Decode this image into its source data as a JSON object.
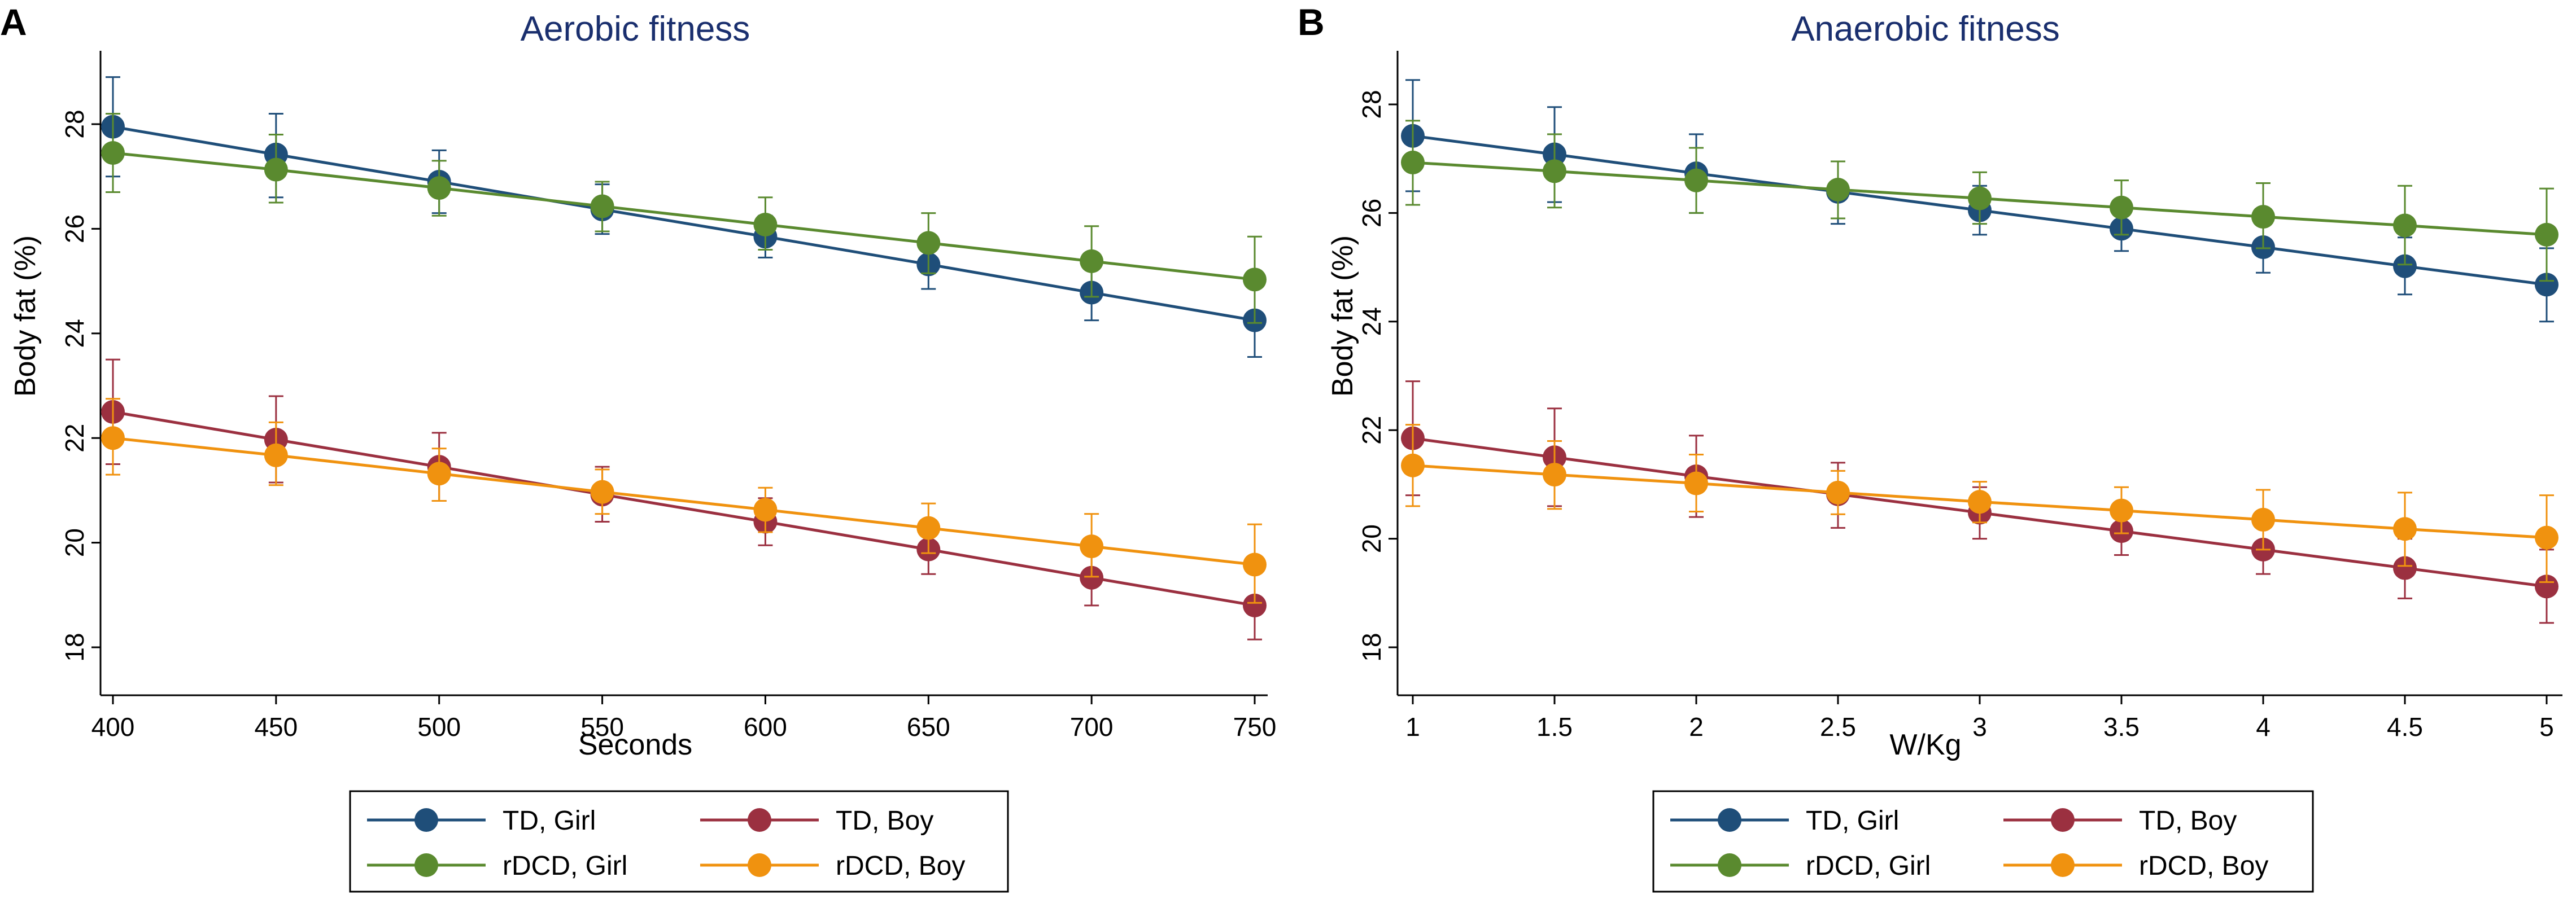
{
  "colors": {
    "td_girl": "#1f4e79",
    "td_boy": "#9b3040",
    "rdcd_girl": "#5a8a2f",
    "rdcd_boy": "#f0920f",
    "title": "#1a2f6e",
    "axis": "#000000",
    "legend_border": "#000000"
  },
  "chart_data": [
    {
      "type": "line",
      "panel_label": "A",
      "title": "Aerobic fitness",
      "xlabel": "Seconds",
      "ylabel": "Body fat (%)",
      "x": [
        400,
        450,
        500,
        550,
        600,
        650,
        700,
        750
      ],
      "x_tick_labels": [
        "400",
        "450",
        "500",
        "550",
        "600",
        "650",
        "700",
        "750"
      ],
      "xlim": [
        400,
        750
      ],
      "y_ticks": [
        18,
        20,
        22,
        24,
        26,
        28
      ],
      "y_tick_labels": [
        "18",
        "20",
        "22",
        "24",
        "26",
        "28"
      ],
      "ylim": [
        17.6,
        29.4
      ],
      "grid": false,
      "series": [
        {
          "key": "td_girl",
          "name": "TD, Girl",
          "values": [
            27.95,
            27.42,
            26.9,
            26.37,
            25.85,
            25.32,
            24.78,
            24.25
          ],
          "ci_low": [
            27.0,
            26.6,
            26.3,
            25.9,
            25.45,
            24.85,
            24.25,
            23.55
          ],
          "ci_high": [
            28.9,
            28.2,
            27.5,
            26.85,
            26.25,
            25.8,
            25.3,
            24.95
          ]
        },
        {
          "key": "td_boy",
          "name": "TD, Boy",
          "values": [
            22.5,
            21.97,
            21.45,
            20.92,
            20.4,
            19.87,
            19.33,
            18.8
          ],
          "ci_low": [
            21.5,
            21.15,
            20.8,
            20.4,
            19.95,
            19.4,
            18.8,
            18.15
          ],
          "ci_high": [
            23.5,
            22.8,
            22.1,
            21.45,
            20.85,
            20.35,
            19.85,
            19.45
          ]
        },
        {
          "key": "rdcd_girl",
          "name": "rDCD, Girl",
          "values": [
            27.45,
            27.13,
            26.78,
            26.43,
            26.08,
            25.73,
            25.38,
            25.03
          ],
          "ci_low": [
            26.7,
            26.5,
            26.25,
            25.95,
            25.6,
            25.15,
            24.7,
            24.2
          ],
          "ci_high": [
            28.2,
            27.8,
            27.3,
            26.9,
            26.6,
            26.3,
            26.05,
            25.85
          ]
        },
        {
          "key": "rdcd_boy",
          "name": "rDCD, Boy",
          "values": [
            22.0,
            21.67,
            21.32,
            20.97,
            20.63,
            20.28,
            19.93,
            19.58
          ],
          "ci_low": [
            21.3,
            21.1,
            20.8,
            20.55,
            20.2,
            19.8,
            19.35,
            18.85
          ],
          "ci_high": [
            22.75,
            22.3,
            21.8,
            21.4,
            21.05,
            20.75,
            20.55,
            20.35
          ]
        }
      ]
    },
    {
      "type": "line",
      "panel_label": "B",
      "title": "Anaerobic fitness",
      "xlabel": "W/Kg",
      "ylabel": "Body fat (%)",
      "x": [
        1,
        1.5,
        2,
        2.5,
        3,
        3.5,
        4,
        4.5,
        5
      ],
      "x_tick_labels": [
        "1",
        "1.5",
        "2",
        "2.5",
        "3",
        "3.5",
        "4",
        "4.5",
        "5"
      ],
      "xlim": [
        1,
        5
      ],
      "y_ticks": [
        18,
        20,
        22,
        24,
        26,
        28
      ],
      "y_tick_labels": [
        "18",
        "20",
        "22",
        "24",
        "26",
        "28"
      ],
      "ylim": [
        17.6,
        28.8
      ],
      "grid": false,
      "series": [
        {
          "key": "td_girl",
          "name": "TD, Girl",
          "values": [
            27.42,
            27.08,
            26.73,
            26.39,
            26.05,
            25.71,
            25.37,
            25.02,
            24.68
          ],
          "ci_low": [
            26.4,
            26.2,
            26.0,
            25.8,
            25.6,
            25.3,
            24.9,
            24.5,
            24.0
          ],
          "ci_high": [
            28.45,
            27.95,
            27.45,
            26.95,
            26.5,
            26.1,
            25.8,
            25.55,
            25.35
          ]
        },
        {
          "key": "td_boy",
          "name": "TD, Boy",
          "values": [
            21.85,
            21.5,
            21.15,
            20.82,
            20.48,
            20.14,
            19.8,
            19.46,
            19.12
          ],
          "ci_low": [
            20.8,
            20.6,
            20.4,
            20.2,
            20.0,
            19.7,
            19.35,
            18.9,
            18.45
          ],
          "ci_high": [
            22.9,
            22.4,
            21.9,
            21.4,
            20.95,
            20.6,
            20.25,
            20.0,
            19.8
          ]
        },
        {
          "key": "rdcd_girl",
          "name": "rDCD, Girl",
          "values": [
            26.93,
            26.77,
            26.6,
            26.43,
            26.27,
            26.1,
            25.93,
            25.77,
            25.6
          ],
          "ci_low": [
            26.15,
            26.1,
            26.0,
            25.9,
            25.8,
            25.6,
            25.35,
            25.05,
            24.75
          ],
          "ci_high": [
            27.7,
            27.45,
            27.2,
            26.95,
            26.75,
            26.6,
            26.55,
            26.5,
            26.45
          ]
        },
        {
          "key": "rdcd_boy",
          "name": "rDCD, Boy",
          "values": [
            21.35,
            21.18,
            21.02,
            20.85,
            20.68,
            20.52,
            20.35,
            20.18,
            20.02
          ],
          "ci_low": [
            20.6,
            20.55,
            20.5,
            20.45,
            20.3,
            20.1,
            19.8,
            19.5,
            19.2
          ],
          "ci_high": [
            22.1,
            21.8,
            21.55,
            21.25,
            21.05,
            20.95,
            20.9,
            20.85,
            20.8
          ]
        }
      ]
    }
  ],
  "legend": [
    {
      "key": "td_girl",
      "label": "TD, Girl"
    },
    {
      "key": "td_boy",
      "label": "TD, Boy"
    },
    {
      "key": "rdcd_girl",
      "label": "rDCD, Girl"
    },
    {
      "key": "rdcd_boy",
      "label": "rDCD, Boy"
    }
  ]
}
